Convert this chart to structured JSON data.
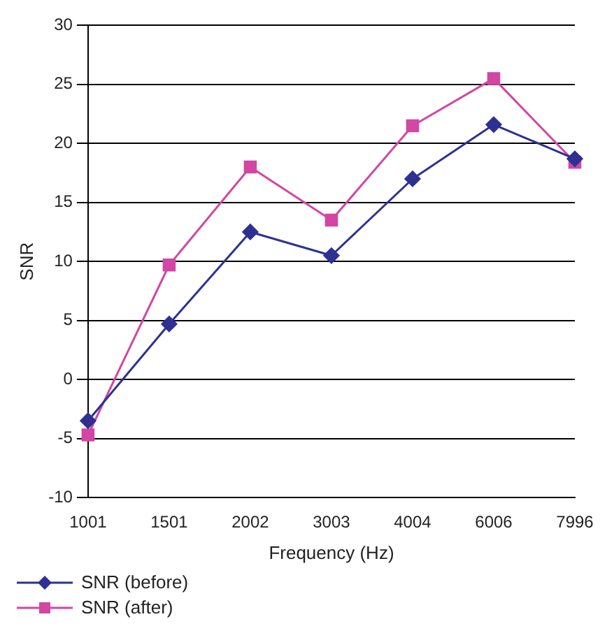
{
  "chart_data": {
    "type": "line",
    "xlabel": "Frequency (Hz)",
    "ylabel": "SNR",
    "categories": [
      "1001",
      "1501",
      "2002",
      "3003",
      "4004",
      "6006",
      "7996"
    ],
    "series": [
      {
        "name": "SNR (before)",
        "color": "#2e3192",
        "marker": "diamond",
        "values": [
          -3.5,
          4.7,
          12.5,
          10.5,
          17,
          21.6,
          18.7
        ]
      },
      {
        "name": "SNR (after)",
        "color": "#d147a3",
        "marker": "square",
        "values": [
          -4.7,
          9.7,
          18,
          13.5,
          21.5,
          25.5,
          18.4
        ]
      }
    ],
    "ylim": [
      -10,
      30
    ],
    "yticks": [
      -10,
      -5,
      0,
      5,
      10,
      15,
      20,
      25,
      30
    ],
    "grid": "y",
    "legend": "bottom left"
  }
}
